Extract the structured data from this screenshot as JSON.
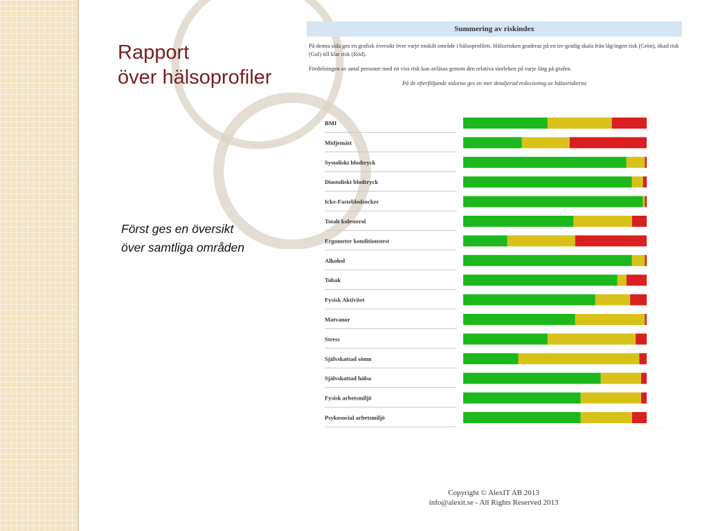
{
  "slide": {
    "title_line1": "Rapport",
    "title_line2": "över hälsoprofiler",
    "note_line1": "Först ges en översikt",
    "note_line2": "över samtliga områden"
  },
  "report": {
    "header": "Summering av riskindex",
    "para1": "På denna sida ges en grafisk översikt över varje enskilt område i hälsoprofilen. Hälsorisken graderas på en tre-gradig skala från låg/ingen risk (Grön), ökad risk (Gul) till klar risk (Röd).",
    "para2": "Fördelningen av antal personer med en viss risk kan avläsas genom den relativa storleken på varje färg på grafen.",
    "emphasis": "På de efterföljande sidorna ges en mer detaljerad redovisning av hälsoriskerna"
  },
  "footer": {
    "line1": "Copyright © AlexIT AB 2013",
    "line2": "info@alexit.se - All Rights Reserved 2013"
  },
  "colors": {
    "green": "#1cb81c",
    "yellow": "#d8c21a",
    "red": "#d91f1f",
    "header_bg": "#d6e5f4",
    "title": "#7a1e1e"
  },
  "chart_data": {
    "type": "bar",
    "stacked": true,
    "orientation": "horizontal",
    "unit": "percent",
    "xlim": [
      0,
      100
    ],
    "grid": false,
    "categories": [
      "BMI",
      "Midjemått",
      "Systoliskt blodtryck",
      "Diastoliskt blodtryck",
      "Icke-Fasteblodsocker",
      "Totalt kolesterol",
      "Ergometer konditionstest",
      "Alkohol",
      "Tobak",
      "Fysisk Aktivitet",
      "Matvanor",
      "Stress",
      "Självskattad sömn",
      "Självskattad hälsa",
      "Fysisk arbetsmiljö",
      "Psykosocial arbetsmiljö"
    ],
    "series": [
      {
        "color": "#1cb81c",
        "values": [
          46,
          32,
          89,
          92,
          98,
          60,
          24,
          92,
          84,
          72,
          61,
          46,
          30,
          75,
          64,
          64
        ]
      },
      {
        "color": "#d8c21a",
        "values": [
          35,
          26,
          10,
          6,
          1,
          32,
          37,
          7,
          5,
          19,
          38,
          48,
          66,
          22,
          33,
          28
        ]
      },
      {
        "color": "#d91f1f",
        "values": [
          19,
          42,
          1,
          2,
          1,
          8,
          39,
          1,
          11,
          9,
          1,
          6,
          4,
          3,
          3,
          8
        ]
      }
    ]
  }
}
